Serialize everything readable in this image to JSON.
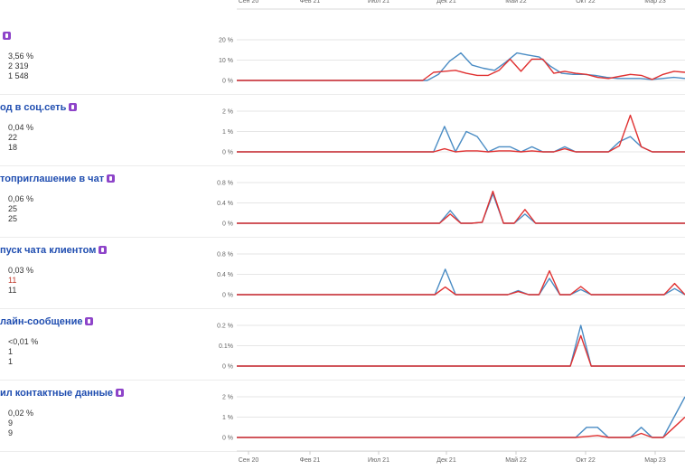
{
  "top_partial_text": "",
  "x_ticks": [
    "Сен 20",
    "Фев 21",
    "Июл 21",
    "Дек 21",
    "Май 22",
    "Окт 22",
    "Мар 23"
  ],
  "colors": {
    "line_blue": "#4a8cc4",
    "line_red": "#e03131",
    "grid": "#e6e6e6",
    "title": "#1f4db0"
  },
  "goals": [
    {
      "title": "",
      "stats": [
        "3,56 %",
        "2 319",
        "1 548"
      ],
      "stat_colors": [
        "",
        "",
        ""
      ]
    },
    {
      "title": "од в соц.сеть",
      "stats": [
        "0,04 %",
        "22",
        "18"
      ],
      "stat_colors": [
        "",
        "",
        ""
      ]
    },
    {
      "title": "топриглашение в чат",
      "stats": [
        "0,06 %",
        "25",
        "25"
      ],
      "stat_colors": [
        "",
        "",
        ""
      ]
    },
    {
      "title": "пуск чата клиентом",
      "stats": [
        "0,03 %",
        "11",
        "11"
      ],
      "stat_colors": [
        "",
        "red",
        ""
      ]
    },
    {
      "title": "лайн-сообщение",
      "stats": [
        "<0,01 %",
        "1",
        "1"
      ],
      "stat_colors": [
        "",
        "",
        ""
      ]
    },
    {
      "title": "ил контактные данные",
      "stats": [
        "0,02 %",
        "9",
        "9"
      ],
      "stat_colors": [
        "",
        "",
        ""
      ]
    }
  ],
  "chart_data": [
    {
      "type": "line",
      "y_ticks": [
        "20 %",
        "10 %",
        "0 %"
      ],
      "ylim": [
        0,
        20
      ],
      "series": [
        {
          "values": [
            0,
            0,
            0,
            0,
            0,
            0,
            0,
            0,
            0,
            0,
            0,
            0,
            0,
            0,
            0,
            0,
            0,
            0,
            3,
            9.5,
            13.5,
            7.5,
            6,
            5,
            9,
            13.5,
            12.5,
            11.5,
            7,
            3.5,
            3,
            3,
            2.5,
            1.5,
            1,
            1,
            1,
            0.5,
            1,
            1.5,
            1
          ]
        },
        {
          "values": [
            0,
            0,
            0,
            0,
            0,
            0,
            0,
            0,
            0,
            0,
            0,
            0,
            0,
            0,
            0,
            0,
            0,
            0,
            4,
            4.5,
            5,
            3.5,
            2.5,
            2.5,
            5,
            10.5,
            4.5,
            10.5,
            10.5,
            3.5,
            4.5,
            3.5,
            3,
            1.5,
            1,
            2,
            3,
            2.5,
            0.5,
            3,
            4.5,
            4
          ]
        }
      ]
    },
    {
      "type": "line",
      "y_ticks": [
        "2 %",
        "1 %",
        "0 %"
      ],
      "ylim": [
        0,
        2
      ],
      "series": [
        {
          "values": [
            0,
            0,
            0,
            0,
            0,
            0,
            0,
            0,
            0,
            0,
            0,
            0,
            0,
            0,
            0,
            0,
            0,
            0,
            0,
            1.25,
            0,
            1,
            0.75,
            0,
            0.25,
            0.25,
            0,
            0.25,
            0,
            0,
            0.25,
            0,
            0,
            0,
            0,
            0.5,
            0.75,
            0.25,
            0,
            0,
            0,
            0
          ]
        },
        {
          "values": [
            0,
            0,
            0,
            0,
            0,
            0,
            0,
            0,
            0,
            0,
            0,
            0,
            0,
            0,
            0,
            0,
            0,
            0,
            0,
            0.15,
            0,
            0.05,
            0.05,
            0,
            0.05,
            0.05,
            0,
            0.05,
            0,
            0,
            0.15,
            0,
            0,
            0,
            0,
            0.3,
            1.8,
            0.25,
            0,
            0,
            0,
            0
          ]
        }
      ]
    },
    {
      "type": "line",
      "y_ticks": [
        "0.8 %",
        "0.4 %",
        "0 %"
      ],
      "ylim": [
        0,
        0.8
      ],
      "series": [
        {
          "values": [
            0,
            0,
            0,
            0,
            0,
            0,
            0,
            0,
            0,
            0,
            0,
            0,
            0,
            0,
            0,
            0,
            0,
            0,
            0,
            0,
            0.25,
            0,
            0,
            0.02,
            0.58,
            0,
            0,
            0.18,
            0,
            0,
            0,
            0,
            0,
            0,
            0,
            0,
            0,
            0,
            0,
            0,
            0,
            0,
            0
          ]
        },
        {
          "values": [
            0,
            0,
            0,
            0,
            0,
            0,
            0,
            0,
            0,
            0,
            0,
            0,
            0,
            0,
            0,
            0,
            0,
            0,
            0,
            0,
            0.18,
            0,
            0,
            0.02,
            0.63,
            0,
            0,
            0.27,
            0,
            0,
            0,
            0,
            0,
            0,
            0,
            0,
            0,
            0,
            0,
            0,
            0,
            0,
            0
          ]
        }
      ]
    },
    {
      "type": "line",
      "y_ticks": [
        "0.8 %",
        "0.4 %",
        "0 %"
      ],
      "ylim": [
        0,
        0.8
      ],
      "series": [
        {
          "values": [
            0,
            0,
            0,
            0,
            0,
            0,
            0,
            0,
            0,
            0,
            0,
            0,
            0,
            0,
            0,
            0,
            0,
            0,
            0,
            0,
            0.5,
            0,
            0,
            0,
            0,
            0,
            0,
            0.08,
            0,
            0,
            0.32,
            0,
            0,
            0.1,
            0,
            0,
            0,
            0,
            0,
            0,
            0,
            0,
            0.12,
            0
          ]
        },
        {
          "values": [
            0,
            0,
            0,
            0,
            0,
            0,
            0,
            0,
            0,
            0,
            0,
            0,
            0,
            0,
            0,
            0,
            0,
            0,
            0,
            0,
            0.15,
            0,
            0,
            0,
            0,
            0,
            0,
            0.06,
            0,
            0,
            0.47,
            0,
            0,
            0.16,
            0,
            0,
            0,
            0,
            0,
            0,
            0,
            0,
            0.22,
            0
          ]
        }
      ]
    },
    {
      "type": "line",
      "y_ticks": [
        "0.2 %",
        "0.1%",
        "0 %"
      ],
      "ylim": [
        0,
        0.2
      ],
      "series": [
        {
          "values": [
            0,
            0,
            0,
            0,
            0,
            0,
            0,
            0,
            0,
            0,
            0,
            0,
            0,
            0,
            0,
            0,
            0,
            0,
            0,
            0,
            0,
            0,
            0,
            0,
            0,
            0,
            0,
            0,
            0,
            0,
            0,
            0,
            0,
            0.2,
            0,
            0,
            0,
            0,
            0,
            0,
            0,
            0,
            0,
            0
          ]
        },
        {
          "values": [
            0,
            0,
            0,
            0,
            0,
            0,
            0,
            0,
            0,
            0,
            0,
            0,
            0,
            0,
            0,
            0,
            0,
            0,
            0,
            0,
            0,
            0,
            0,
            0,
            0,
            0,
            0,
            0,
            0,
            0,
            0,
            0,
            0,
            0.15,
            0,
            0,
            0,
            0,
            0,
            0,
            0,
            0,
            0,
            0
          ]
        }
      ]
    },
    {
      "type": "line",
      "y_ticks": [
        "2 %",
        "1 %",
        "0 %"
      ],
      "ylim": [
        0,
        2
      ],
      "series": [
        {
          "values": [
            0,
            0,
            0,
            0,
            0,
            0,
            0,
            0,
            0,
            0,
            0,
            0,
            0,
            0,
            0,
            0,
            0,
            0,
            0,
            0,
            0,
            0,
            0,
            0,
            0,
            0,
            0,
            0,
            0,
            0,
            0,
            0,
            0.5,
            0.5,
            0,
            0,
            0,
            0.5,
            0,
            0,
            1,
            2
          ]
        },
        {
          "values": [
            0,
            0,
            0,
            0,
            0,
            0,
            0,
            0,
            0,
            0,
            0,
            0,
            0,
            0,
            0,
            0,
            0,
            0,
            0,
            0,
            0,
            0,
            0,
            0,
            0,
            0,
            0,
            0,
            0,
            0,
            0,
            0,
            0.05,
            0.1,
            0,
            0,
            0,
            0.2,
            0,
            0,
            0.5,
            1
          ]
        }
      ]
    }
  ]
}
